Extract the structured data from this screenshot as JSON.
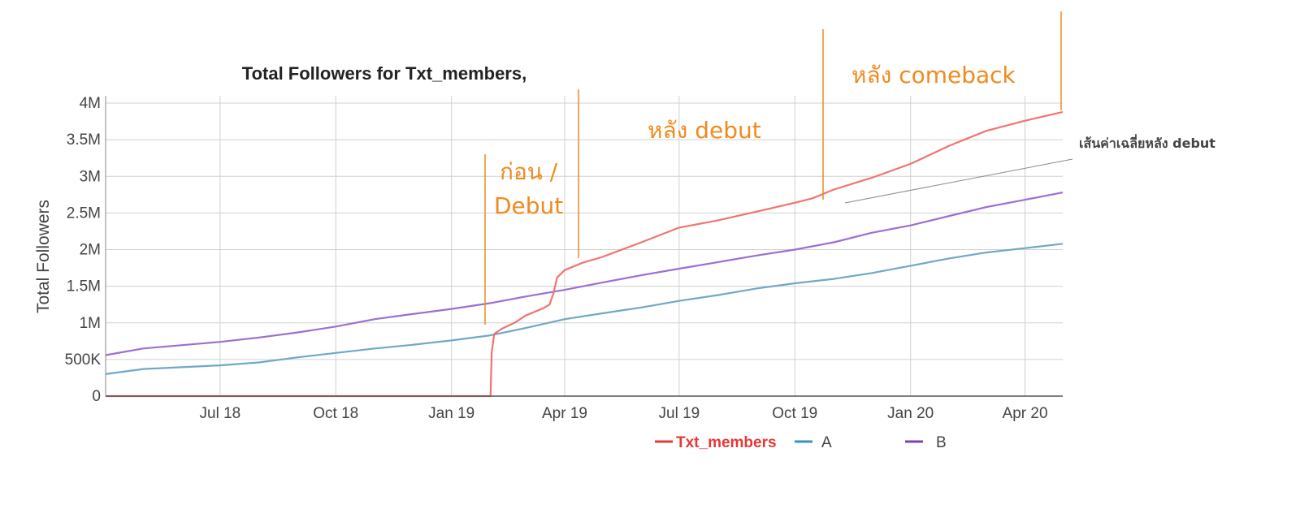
{
  "chart_data": {
    "type": "line",
    "title": "Total Followers for Txt_members,",
    "xlabel": "",
    "ylabel": "Total Followers",
    "x_ticks": [
      "Jul 18",
      "Oct 18",
      "Jan 19",
      "Apr 19",
      "Jul 19",
      "Oct 19",
      "Jan 20",
      "Apr 20"
    ],
    "y_ticks": [
      "0",
      "500K",
      "1M",
      "1.5M",
      "2M",
      "2.5M",
      "3M",
      "3.5M",
      "4M"
    ],
    "ylim": [
      0,
      4100000
    ],
    "xlim": [
      "2018-04-01",
      "2020-05-01"
    ],
    "grid": true,
    "legend_position": "bottom",
    "series": [
      {
        "name": "Txt_members",
        "color": "#f07470",
        "legend_color": "#e53935",
        "points": [
          [
            "2018-04-01",
            0
          ],
          [
            "2019-02-01",
            0
          ],
          [
            "2019-02-02",
            600000
          ],
          [
            "2019-02-04",
            850000
          ],
          [
            "2019-02-10",
            920000
          ],
          [
            "2019-02-20",
            1000000
          ],
          [
            "2019-03-01",
            1100000
          ],
          [
            "2019-03-15",
            1200000
          ],
          [
            "2019-03-20",
            1250000
          ],
          [
            "2019-03-23",
            1400000
          ],
          [
            "2019-03-26",
            1620000
          ],
          [
            "2019-04-01",
            1720000
          ],
          [
            "2019-04-15",
            1820000
          ],
          [
            "2019-05-01",
            1900000
          ],
          [
            "2019-06-01",
            2100000
          ],
          [
            "2019-07-01",
            2300000
          ],
          [
            "2019-08-01",
            2400000
          ],
          [
            "2019-09-01",
            2520000
          ],
          [
            "2019-10-01",
            2640000
          ],
          [
            "2019-10-15",
            2700000
          ],
          [
            "2019-11-01",
            2820000
          ],
          [
            "2019-12-01",
            2980000
          ],
          [
            "2020-01-01",
            3170000
          ],
          [
            "2020-02-01",
            3420000
          ],
          [
            "2020-03-01",
            3620000
          ],
          [
            "2020-04-01",
            3760000
          ],
          [
            "2020-05-01",
            3880000
          ]
        ]
      },
      {
        "name": "A",
        "color": "#6fa8c8",
        "points": [
          [
            "2018-04-01",
            300000
          ],
          [
            "2018-05-01",
            370000
          ],
          [
            "2018-07-01",
            420000
          ],
          [
            "2018-08-01",
            460000
          ],
          [
            "2018-09-01",
            530000
          ],
          [
            "2018-10-01",
            590000
          ],
          [
            "2018-11-01",
            650000
          ],
          [
            "2018-12-01",
            700000
          ],
          [
            "2019-01-01",
            760000
          ],
          [
            "2019-02-01",
            830000
          ],
          [
            "2019-03-01",
            930000
          ],
          [
            "2019-04-01",
            1050000
          ],
          [
            "2019-05-01",
            1130000
          ],
          [
            "2019-06-01",
            1210000
          ],
          [
            "2019-07-01",
            1300000
          ],
          [
            "2019-08-01",
            1380000
          ],
          [
            "2019-09-01",
            1470000
          ],
          [
            "2019-10-01",
            1540000
          ],
          [
            "2019-11-01",
            1600000
          ],
          [
            "2019-12-01",
            1680000
          ],
          [
            "2020-01-01",
            1780000
          ],
          [
            "2020-02-01",
            1880000
          ],
          [
            "2020-03-01",
            1960000
          ],
          [
            "2020-04-01",
            2020000
          ],
          [
            "2020-05-01",
            2080000
          ]
        ]
      },
      {
        "name": "B",
        "color": "#9b6fd0",
        "legend_color": "#7e3fb3",
        "points": [
          [
            "2018-04-01",
            560000
          ],
          [
            "2018-05-01",
            650000
          ],
          [
            "2018-07-01",
            740000
          ],
          [
            "2018-08-01",
            800000
          ],
          [
            "2018-09-01",
            870000
          ],
          [
            "2018-10-01",
            950000
          ],
          [
            "2018-11-01",
            1050000
          ],
          [
            "2018-12-01",
            1120000
          ],
          [
            "2019-01-01",
            1190000
          ],
          [
            "2019-02-01",
            1270000
          ],
          [
            "2019-03-01",
            1360000
          ],
          [
            "2019-04-01",
            1450000
          ],
          [
            "2019-05-01",
            1550000
          ],
          [
            "2019-06-01",
            1650000
          ],
          [
            "2019-07-01",
            1740000
          ],
          [
            "2019-08-01",
            1830000
          ],
          [
            "2019-09-01",
            1920000
          ],
          [
            "2019-10-01",
            2000000
          ],
          [
            "2019-11-01",
            2100000
          ],
          [
            "2019-12-01",
            2230000
          ],
          [
            "2020-01-01",
            2330000
          ],
          [
            "2020-02-01",
            2460000
          ],
          [
            "2020-03-01",
            2580000
          ],
          [
            "2020-04-01",
            2680000
          ],
          [
            "2020-05-01",
            2780000
          ]
        ]
      }
    ],
    "annotations": {
      "before_debut_line1": "ก่อน /",
      "before_debut_line2": "Debut",
      "after_debut": "หลัง debut",
      "after_comeback": "หลัง comeback",
      "average_line": "เส้นค่าเฉลี่ยหลัง debut",
      "annotation_color": "#f08a1e"
    }
  }
}
